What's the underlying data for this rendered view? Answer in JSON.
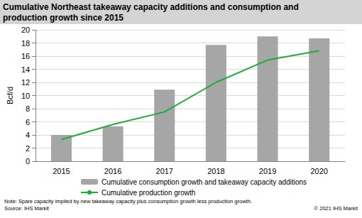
{
  "chart_data": {
    "type": "bar",
    "title": "Cumulative Northeast takeaway capacity additions and consumption and production growth since 2015",
    "y_label": "Bcf/d",
    "categories": [
      "2015",
      "2016",
      "2017",
      "2018",
      "2019",
      "2020"
    ],
    "series": [
      {
        "name": "Cumulative consumption growth and takeaway capacity additions",
        "type": "bar",
        "color": "#a6a6a6",
        "values": [
          4.0,
          5.3,
          10.9,
          17.7,
          19.0,
          18.7
        ]
      },
      {
        "name": "Cumulative production growth",
        "type": "line",
        "color": "#1faa3a",
        "values": [
          3.3,
          5.6,
          7.5,
          12.0,
          15.4,
          16.8
        ]
      }
    ],
    "ylim": [
      0,
      20
    ],
    "yticks": [
      0,
      2,
      4,
      6,
      8,
      10,
      12,
      14,
      16,
      18,
      20
    ],
    "grid": true,
    "legend": "bottom",
    "annotations": [
      "Note: Spare capacity implied by new takeaway capacity plus consumption growth less production growth.",
      "Source: IHS Markit",
      "© 2021 IHS Markit"
    ]
  }
}
